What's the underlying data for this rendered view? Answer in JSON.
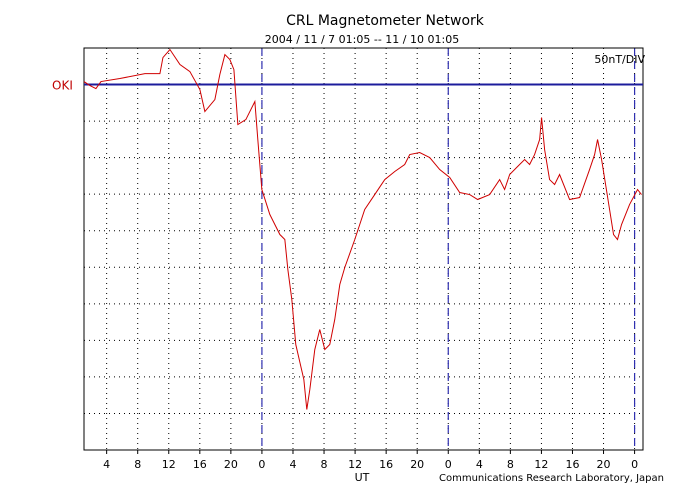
{
  "chart_data": {
    "type": "line",
    "title": "CRL Magnetometer Network",
    "subtitle": "2004 / 11 / 7  01:05 -- 11 / 10  01:05",
    "scale_label": "50nT/DIV",
    "station_label": "OKI",
    "x_label": "UT",
    "credit": "Communications Research Laboratory, Japan",
    "xlim": [
      1.083,
      73.083
    ],
    "xticks": [
      4,
      8,
      12,
      16,
      20,
      {
        "value": 24,
        "label": "0"
      },
      {
        "value": 28,
        "label": "4"
      },
      {
        "value": 32,
        "label": "8"
      },
      {
        "value": 36,
        "label": "12"
      },
      {
        "value": 40,
        "label": "16"
      },
      {
        "value": 44,
        "label": "20"
      },
      {
        "value": 48,
        "label": "0"
      },
      {
        "value": 52,
        "label": "4"
      },
      {
        "value": 56,
        "label": "8"
      },
      {
        "value": 60,
        "label": "12"
      },
      {
        "value": 64,
        "label": "16"
      },
      {
        "value": 68,
        "label": "20"
      },
      {
        "value": 72,
        "label": "0"
      }
    ],
    "ylim": [
      -500,
      50
    ],
    "yticks": [
      -500,
      -450,
      -400,
      -350,
      -300,
      -250,
      -200,
      -150,
      -100,
      -50,
      0,
      50
    ],
    "grid": true,
    "day_boundaries": [
      24,
      48,
      72
    ],
    "day_boundary_color": "#3030b0",
    "baseline": 0,
    "baseline_color": "#1c1c9c",
    "series": [
      {
        "color": "#d00000",
        "x": [
          1.08,
          1.85,
          2.62,
          3.27,
          5.71,
          8.93,
          10.86,
          11.25,
          12.15,
          13.44,
          14.72,
          16.01,
          16.65,
          17.94,
          18.58,
          19.23,
          19.87,
          20.39,
          20.9,
          21.93,
          23.09,
          23.47,
          23.99,
          25.02,
          26.31,
          26.95,
          27.34,
          27.85,
          28.36,
          29.4,
          29.78,
          30.17,
          30.81,
          31.45,
          32.1,
          32.74,
          33.38,
          34.03,
          34.67,
          35.96,
          37.24,
          38.53,
          39.82,
          41.11,
          42.39,
          43.04,
          44.32,
          45.61,
          46.9,
          48.19,
          49.47,
          50.76,
          51.79,
          53.33,
          54.62,
          55.26,
          55.91,
          57.19,
          57.84,
          58.48,
          59.12,
          59.77,
          60.02,
          60.41,
          61.05,
          61.7,
          62.34,
          63.63,
          64.92,
          66.2,
          66.85,
          67.23,
          67.75,
          68.78,
          69.29,
          69.8,
          70.32,
          71.35,
          72.38,
          72.89
        ],
        "values": [
          4.1,
          -1.4,
          -5.5,
          4.1,
          8.2,
          15.0,
          15.0,
          36.9,
          47.9,
          27.4,
          17.8,
          -6.8,
          -36.9,
          -20.5,
          13.7,
          41.0,
          34.2,
          20.5,
          -54.7,
          -47.9,
          -23.3,
          -75.2,
          -143.6,
          -177.8,
          -205.2,
          -212.0,
          -253.1,
          -294.1,
          -355.7,
          -403.6,
          -444.6,
          -417.2,
          -362.5,
          -335.2,
          -362.5,
          -355.7,
          -321.5,
          -273.6,
          -250.3,
          -212.0,
          -171.0,
          -150.5,
          -130.0,
          -119.0,
          -109.4,
          -95.8,
          -93.0,
          -99.9,
          -116.3,
          -127.2,
          -147.7,
          -150.5,
          -157.3,
          -150.5,
          -130.0,
          -143.6,
          -123.1,
          -109.4,
          -102.6,
          -109.4,
          -95.8,
          -75.2,
          -45.1,
          -88.9,
          -130.0,
          -136.8,
          -123.1,
          -157.3,
          -154.6,
          -116.3,
          -95.8,
          -75.2,
          -102.6,
          -171.0,
          -205.2,
          -212.0,
          -191.5,
          -164.2,
          -143.6,
          -150.5
        ]
      }
    ]
  }
}
